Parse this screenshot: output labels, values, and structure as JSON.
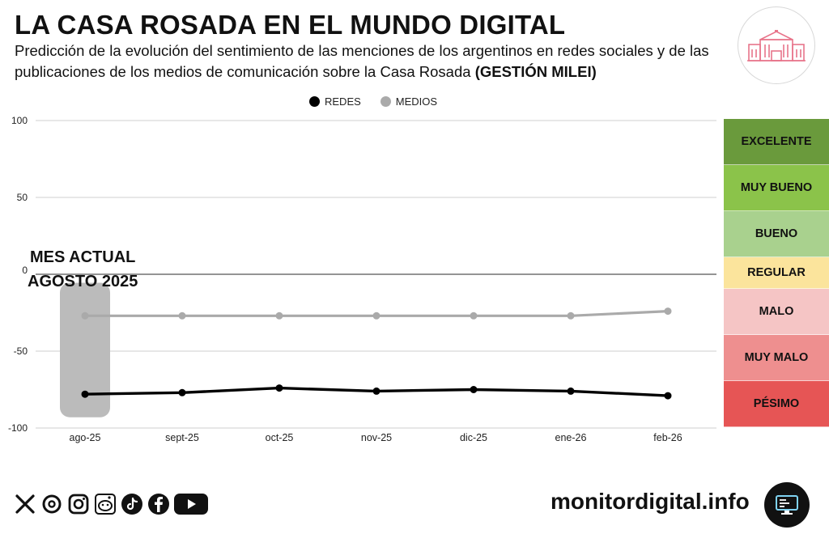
{
  "header": {
    "title": "LA CASA ROSADA EN EL MUNDO DIGITAL",
    "subtitle": "Predicción de la evolución del sentimiento de las menciones de los argentinos en redes sociales y de las publicaciones de los medios de comunicación sobre la Casa Rosada",
    "subtitle_bold": "(GESTIÓN MILEI)"
  },
  "current_month": {
    "line1": "MES ACTUAL",
    "line2": "AGOSTO 2025"
  },
  "chart_data": {
    "type": "line",
    "categories": [
      "ago-25",
      "sept-25",
      "oct-25",
      "nov-25",
      "dic-25",
      "ene-26",
      "feb-26"
    ],
    "series": [
      {
        "name": "REDES",
        "color": "#000000",
        "values": [
          -78,
          -77,
          -74,
          -76,
          -75,
          -76,
          -79
        ]
      },
      {
        "name": "MEDIOS",
        "color": "#aaaaaa",
        "values": [
          -27,
          -27,
          -27,
          -27,
          -27,
          -27,
          -24
        ]
      }
    ],
    "ylim": [
      -100,
      100
    ],
    "yticks": [
      100,
      50,
      0,
      -50,
      -100
    ],
    "highlight_category": "ago-25",
    "legend_position": "top-center",
    "grid": true
  },
  "sentiment_scale": [
    {
      "label": "EXCELENTE",
      "color": "#6a9a3c",
      "from": 70,
      "to": 100
    },
    {
      "label": "MUY BUENO",
      "color": "#8bc34a",
      "from": 40,
      "to": 70
    },
    {
      "label": "BUENO",
      "color": "#a9d18e",
      "from": 10,
      "to": 40
    },
    {
      "label": "REGULAR",
      "color": "#fbe49c",
      "from": -10,
      "to": 10
    },
    {
      "label": "MALO",
      "color": "#f5c5c5",
      "from": -40,
      "to": -10
    },
    {
      "label": "MUY MALO",
      "color": "#ee8f8f",
      "from": -70,
      "to": -40
    },
    {
      "label": "PÉSIMO",
      "color": "#e65555",
      "from": -100,
      "to": -70
    }
  ],
  "footer": {
    "social_icons": [
      "x-icon",
      "threads-icon",
      "instagram-icon",
      "reddit-icon",
      "tiktok-icon",
      "facebook-icon",
      "youtube-icon"
    ],
    "website": "monitordigital.info"
  }
}
